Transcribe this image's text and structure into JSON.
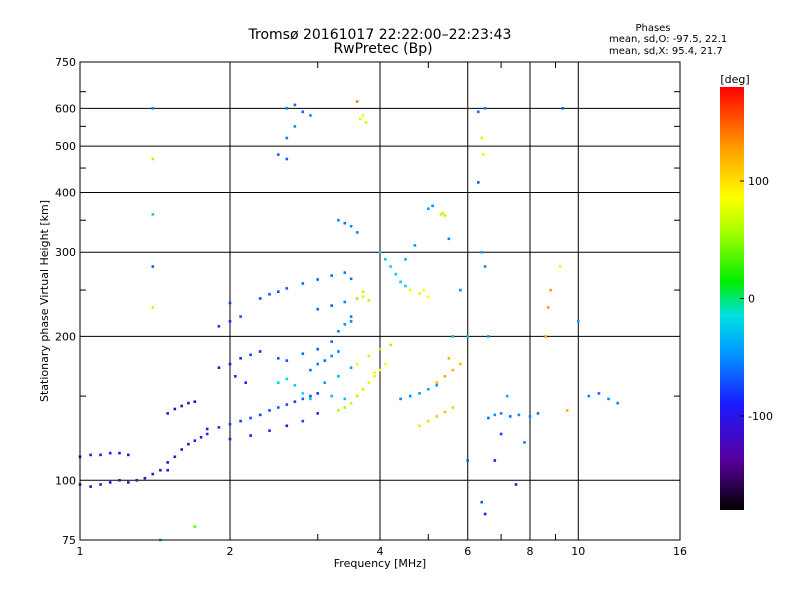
{
  "header": {
    "title": "Tromsø 20161017 22:22:00–22:23:43",
    "subtitle": "RwPretec (Bp)",
    "stats_title": "Phases",
    "stats_o": "mean, sd,O: -97.5, 22.1",
    "stats_x": "mean, sd,X:  95.4, 21.7"
  },
  "colorbar": {
    "label": "[deg]",
    "ticks": [
      "100",
      "0",
      "-100"
    ],
    "tick_values": [
      100,
      0,
      -100
    ],
    "range": [
      -180,
      180
    ]
  },
  "chart_data": {
    "type": "scatter",
    "xlabel": "Frequency [MHz]",
    "ylabel": "Stationary phase Virtual Height [km]",
    "xscale": "log2",
    "yscale": "log",
    "xlim": [
      1,
      16
    ],
    "ylim": [
      75,
      750
    ],
    "xticks": [
      1,
      2,
      4,
      6,
      8,
      10,
      16
    ],
    "xtick_labels": [
      "1",
      "2",
      "4",
      "6",
      "8",
      "10",
      "16"
    ],
    "yticks": [
      75,
      100,
      200,
      300,
      400,
      500,
      600,
      750
    ],
    "ytick_labels": [
      "75",
      "100",
      "200",
      "300",
      "400",
      "500",
      "600",
      "750"
    ],
    "grid": true,
    "points": [
      [
        1.0,
        112,
        -130
      ],
      [
        1.05,
        113,
        -140
      ],
      [
        1.1,
        113,
        -135
      ],
      [
        1.15,
        114,
        -130
      ],
      [
        1.2,
        114,
        -140
      ],
      [
        1.25,
        113,
        -135
      ],
      [
        1.0,
        98,
        -140
      ],
      [
        1.05,
        97,
        -145
      ],
      [
        1.1,
        98,
        -140
      ],
      [
        1.15,
        99,
        -135
      ],
      [
        1.2,
        100,
        -140
      ],
      [
        1.25,
        99,
        -145
      ],
      [
        1.3,
        100,
        -135
      ],
      [
        1.35,
        101,
        -140
      ],
      [
        1.4,
        103,
        -130
      ],
      [
        1.45,
        105,
        -135
      ],
      [
        1.5,
        109,
        -140
      ],
      [
        1.55,
        112,
        -130
      ],
      [
        1.6,
        116,
        -135
      ],
      [
        1.65,
        119,
        -140
      ],
      [
        1.7,
        121,
        -125
      ],
      [
        1.75,
        123,
        -120
      ],
      [
        1.8,
        125,
        -115
      ],
      [
        1.5,
        138,
        -140
      ],
      [
        1.55,
        141,
        -145
      ],
      [
        1.6,
        143,
        -140
      ],
      [
        1.65,
        145,
        -135
      ],
      [
        1.7,
        146,
        -140
      ],
      [
        1.8,
        128,
        -120
      ],
      [
        1.9,
        129,
        -115
      ],
      [
        2.0,
        131,
        -110
      ],
      [
        2.1,
        133,
        -110
      ],
      [
        2.2,
        135,
        -105
      ],
      [
        2.3,
        137,
        -110
      ],
      [
        2.4,
        140,
        -105
      ],
      [
        2.5,
        142,
        -100
      ],
      [
        2.6,
        144,
        -105
      ],
      [
        2.7,
        146,
        -110
      ],
      [
        2.8,
        148,
        -100
      ],
      [
        2.9,
        150,
        -105
      ],
      [
        3.0,
        152,
        -110
      ],
      [
        2.0,
        122,
        -125
      ],
      [
        2.2,
        124,
        -120
      ],
      [
        2.4,
        127,
        -115
      ],
      [
        2.6,
        130,
        -120
      ],
      [
        2.8,
        133,
        -110
      ],
      [
        3.0,
        138,
        -115
      ],
      [
        2.9,
        170,
        -95
      ],
      [
        3.0,
        175,
        -90
      ],
      [
        3.1,
        178,
        -95
      ],
      [
        3.2,
        182,
        -85
      ],
      [
        3.3,
        186,
        -90
      ],
      [
        3.2,
        195,
        -95
      ],
      [
        3.3,
        205,
        -90
      ],
      [
        3.4,
        212,
        -85
      ],
      [
        3.5,
        220,
        -90
      ],
      [
        2.3,
        240,
        -105
      ],
      [
        2.4,
        245,
        -100
      ],
      [
        2.5,
        248,
        -105
      ],
      [
        2.6,
        252,
        -100
      ],
      [
        2.8,
        258,
        -95
      ],
      [
        3.0,
        263,
        -100
      ],
      [
        3.2,
        268,
        -95
      ],
      [
        3.4,
        272,
        -90
      ],
      [
        3.5,
        264,
        -95
      ],
      [
        3.0,
        228,
        -95
      ],
      [
        3.2,
        232,
        -100
      ],
      [
        3.4,
        236,
        -90
      ],
      [
        3.6,
        240,
        -95
      ],
      [
        3.5,
        215,
        -90
      ],
      [
        2.5,
        180,
        -100
      ],
      [
        2.6,
        178,
        -105
      ],
      [
        2.8,
        184,
        -95
      ],
      [
        3.0,
        188,
        -100
      ],
      [
        2.0,
        175,
        -120
      ],
      [
        2.1,
        180,
        -115
      ],
      [
        2.2,
        183,
        -110
      ],
      [
        2.3,
        186,
        -115
      ],
      [
        1.9,
        172,
        -125
      ],
      [
        2.05,
        165,
        -118
      ],
      [
        2.15,
        160,
        -122
      ],
      [
        1.9,
        210,
        -110
      ],
      [
        2.0,
        215,
        -115
      ],
      [
        2.1,
        220,
        -105
      ],
      [
        2.0,
        235,
        -110
      ],
      [
        2.5,
        160,
        -35
      ],
      [
        2.6,
        163,
        -40
      ],
      [
        2.7,
        158,
        -45
      ],
      [
        2.8,
        152,
        -35
      ],
      [
        2.9,
        148,
        -40
      ],
      [
        3.3,
        140,
        60
      ],
      [
        3.4,
        142,
        55
      ],
      [
        3.5,
        145,
        65
      ],
      [
        3.6,
        150,
        60
      ],
      [
        3.7,
        155,
        70
      ],
      [
        3.8,
        160,
        75
      ],
      [
        3.9,
        165,
        80
      ],
      [
        4.0,
        170,
        85
      ],
      [
        4.1,
        175,
        90
      ],
      [
        3.6,
        175,
        95
      ],
      [
        3.8,
        182,
        100
      ],
      [
        4.0,
        188,
        105
      ],
      [
        4.2,
        192,
        110
      ],
      [
        3.9,
        168,
        90
      ],
      [
        4.6,
        150,
        -85
      ],
      [
        4.8,
        152,
        -80
      ],
      [
        5.0,
        155,
        -75
      ],
      [
        5.2,
        158,
        -80
      ],
      [
        4.4,
        148,
        -90
      ],
      [
        4.8,
        130,
        100
      ],
      [
        5.0,
        133,
        105
      ],
      [
        5.2,
        136,
        110
      ],
      [
        5.4,
        139,
        115
      ],
      [
        5.6,
        142,
        110
      ],
      [
        5.2,
        160,
        120
      ],
      [
        5.4,
        165,
        125
      ],
      [
        5.6,
        170,
        120
      ],
      [
        5.8,
        175,
        115
      ],
      [
        5.5,
        180,
        118
      ],
      [
        4.0,
        300,
        -40
      ],
      [
        4.1,
        290,
        -45
      ],
      [
        4.2,
        280,
        -35
      ],
      [
        4.3,
        270,
        -40
      ],
      [
        4.4,
        260,
        -45
      ],
      [
        4.5,
        255,
        -40
      ],
      [
        4.6,
        250,
        95
      ],
      [
        4.8,
        246,
        100
      ],
      [
        5.0,
        242,
        90
      ],
      [
        4.9,
        250,
        85
      ],
      [
        3.6,
        240,
        70
      ],
      [
        3.7,
        242,
        75
      ],
      [
        3.8,
        238,
        65
      ],
      [
        3.7,
        248,
        70
      ],
      [
        2.6,
        600,
        -90
      ],
      [
        2.7,
        610,
        -95
      ],
      [
        2.8,
        590,
        -100
      ],
      [
        2.9,
        580,
        -90
      ],
      [
        2.7,
        550,
        -85
      ],
      [
        2.6,
        520,
        -90
      ],
      [
        2.5,
        480,
        -95
      ],
      [
        2.6,
        470,
        -100
      ],
      [
        3.3,
        350,
        -90
      ],
      [
        3.4,
        345,
        -95
      ],
      [
        3.5,
        340,
        -85
      ],
      [
        3.6,
        330,
        -90
      ],
      [
        3.65,
        570,
        75
      ],
      [
        3.7,
        580,
        80
      ],
      [
        3.75,
        560,
        70
      ],
      [
        3.6,
        620,
        140
      ],
      [
        5.3,
        360,
        65
      ],
      [
        5.35,
        362,
        70
      ],
      [
        5.4,
        358,
        60
      ],
      [
        5.0,
        370,
        -80
      ],
      [
        5.1,
        375,
        -85
      ],
      [
        6.3,
        590,
        -95
      ],
      [
        6.4,
        520,
        75
      ],
      [
        6.45,
        480,
        80
      ],
      [
        6.5,
        600,
        -90
      ],
      [
        6.4,
        300,
        -80
      ],
      [
        6.5,
        280,
        -85
      ],
      [
        6.3,
        420,
        -100
      ],
      [
        6.4,
        90,
        -100
      ],
      [
        6.5,
        85,
        -130
      ],
      [
        7.5,
        98,
        -120
      ],
      [
        7.8,
        120,
        -90
      ],
      [
        6.6,
        135,
        -95
      ],
      [
        6.8,
        137,
        -85
      ],
      [
        7.0,
        138,
        -90
      ],
      [
        7.3,
        136,
        -95
      ],
      [
        7.6,
        137,
        -85
      ],
      [
        8.0,
        136,
        -90
      ],
      [
        8.3,
        138,
        -95
      ],
      [
        8.6,
        200,
        130
      ],
      [
        8.7,
        230,
        125
      ],
      [
        8.8,
        250,
        130
      ],
      [
        9.2,
        280,
        85
      ],
      [
        9.3,
        600,
        -100
      ],
      [
        9.5,
        140,
        120
      ],
      [
        10.5,
        150,
        -90
      ],
      [
        11.0,
        152,
        -95
      ],
      [
        11.5,
        148,
        -85
      ],
      [
        12.0,
        145,
        -90
      ],
      [
        10.0,
        215,
        -80
      ],
      [
        1.4,
        600,
        -90
      ],
      [
        1.4,
        470,
        60
      ],
      [
        1.4,
        360,
        -10
      ],
      [
        1.4,
        230,
        70
      ],
      [
        1.4,
        280,
        -100
      ],
      [
        1.45,
        75,
        10
      ],
      [
        1.7,
        80,
        40
      ],
      [
        1.5,
        105,
        -120
      ],
      [
        6.0,
        200,
        -60
      ],
      [
        6.6,
        200,
        -80
      ],
      [
        7.2,
        150,
        -70
      ],
      [
        7.0,
        125,
        -110
      ],
      [
        6.8,
        110,
        -120
      ],
      [
        6.0,
        110,
        -100
      ],
      [
        5.6,
        200,
        -60
      ],
      [
        5.8,
        250,
        -85
      ],
      [
        5.5,
        320,
        -90
      ],
      [
        4.7,
        310,
        -80
      ],
      [
        4.5,
        290,
        -70
      ],
      [
        3.1,
        160,
        -80
      ],
      [
        3.3,
        165,
        -70
      ],
      [
        3.5,
        172,
        -75
      ],
      [
        3.2,
        150,
        -60
      ],
      [
        3.4,
        148,
        -55
      ]
    ]
  }
}
